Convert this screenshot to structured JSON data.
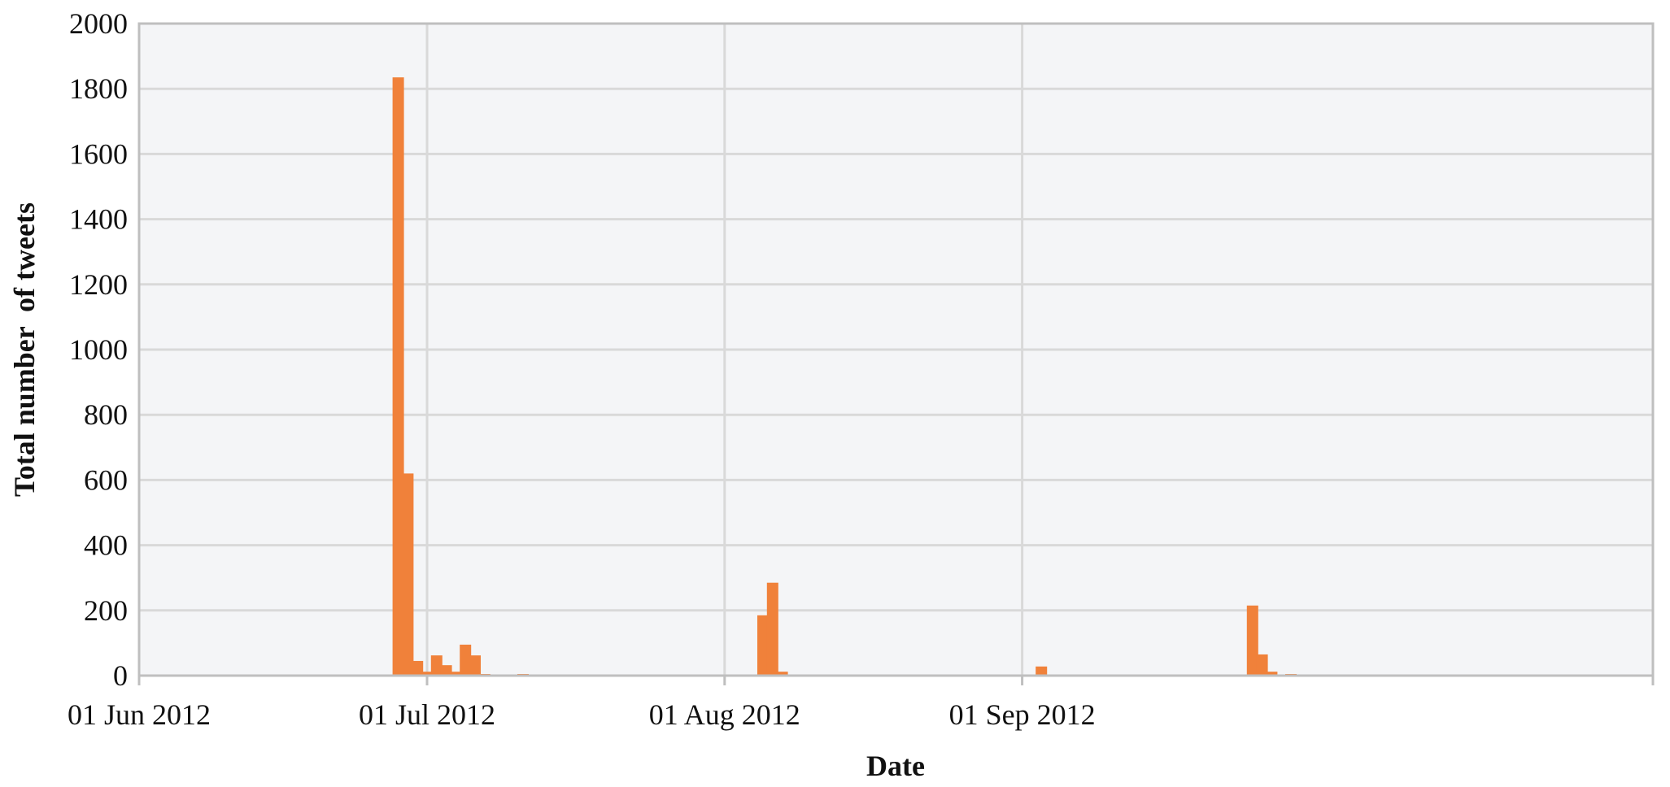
{
  "chart_data": {
    "type": "bar",
    "title": "",
    "xlabel": "Date",
    "ylabel": "Total number  of tweets",
    "x_axis_type": "date",
    "xlim": [
      "2012-06-01",
      "2012-09-30"
    ],
    "ylim": [
      0,
      2000
    ],
    "y_ticks": [
      0,
      200,
      400,
      600,
      800,
      1000,
      1200,
      1400,
      1600,
      1800,
      2000
    ],
    "x_ticks": [
      {
        "date": "2012-06-01",
        "label": "01 Jun 2012"
      },
      {
        "date": "2012-07-01",
        "label": "01 Jul 2012"
      },
      {
        "date": "2012-08-01",
        "label": "01 Aug 2012"
      },
      {
        "date": "2012-09-01",
        "label": "01 Sep 2012"
      }
    ],
    "grid": true,
    "legend": "none",
    "bar_color": "#F0813A",
    "plot_background": "#F4F5F7",
    "grid_color": "#D9D9D9",
    "series": [
      {
        "x": [
          "2012-06-28",
          "2012-06-29",
          "2012-06-30",
          "2012-07-01",
          "2012-07-02",
          "2012-07-03",
          "2012-07-04",
          "2012-07-05",
          "2012-07-06",
          "2012-07-07",
          "2012-07-11",
          "2012-08-05",
          "2012-08-06",
          "2012-08-07",
          "2012-09-03",
          "2012-09-25",
          "2012-09-26",
          "2012-09-27",
          "2012-09-29"
        ],
        "values": [
          1835,
          620,
          45,
          12,
          62,
          32,
          12,
          95,
          62,
          5,
          5,
          185,
          285,
          12,
          28,
          215,
          65,
          12,
          5
        ]
      }
    ]
  }
}
